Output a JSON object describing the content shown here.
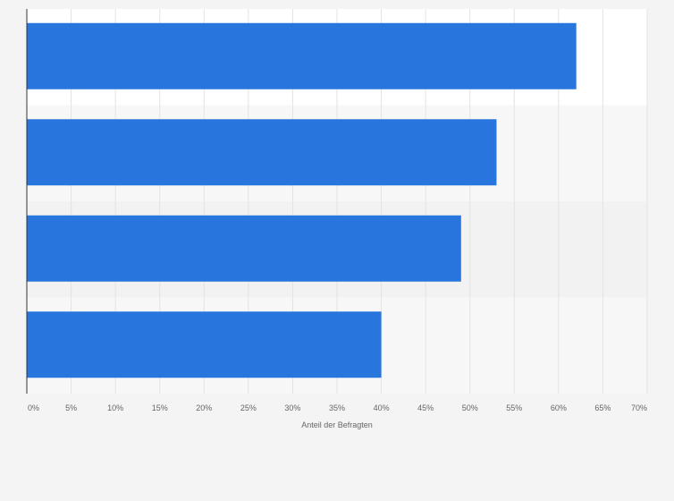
{
  "chart_data": {
    "type": "bar",
    "orientation": "horizontal",
    "categories": [
      "",
      "",
      "",
      ""
    ],
    "values": [
      62,
      53,
      49,
      40
    ],
    "xlabel": "Anteil der Befragten",
    "ylabel": "",
    "xlim": [
      0,
      70
    ],
    "x_ticks": [
      0,
      5,
      10,
      15,
      20,
      25,
      30,
      35,
      40,
      45,
      50,
      55,
      60,
      65,
      70
    ],
    "x_tick_labels": [
      "0%",
      "5%",
      "10%",
      "15%",
      "20%",
      "25%",
      "30%",
      "35%",
      "40%",
      "45%",
      "50%",
      "55%",
      "60%",
      "65%",
      "70%"
    ],
    "grid": true,
    "bar_color": "#2876dd",
    "band_colors": [
      "#ffffff",
      "#f7f7f7",
      "#f2f2f2",
      "#f7f7f7"
    ],
    "background": "#f4f4f4"
  }
}
